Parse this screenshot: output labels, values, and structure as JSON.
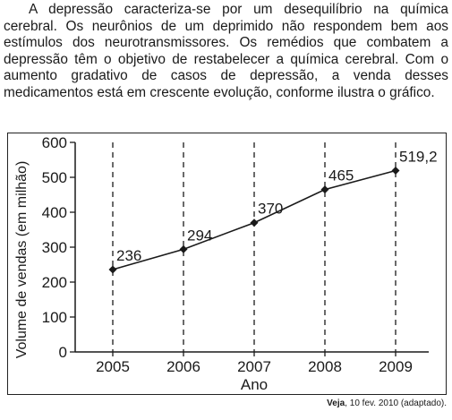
{
  "paragraph": "A depressão caracteriza-se por um desequilíbrio na química cerebral. Os neurônios de um deprimido não respondem bem aos estímulos dos neurotransmissores. Os remédios que combatem a depressão têm o objetivo de restabelecer a química cerebral. Com o aumento gradativo de casos de depressão, a venda desses medicamentos está em crescente evolução, conforme ilustra o gráfico.",
  "source": {
    "name": "Veja",
    "rest": ", 10 fev. 2010 (adaptado)."
  },
  "chart_data": {
    "type": "line",
    "title": "",
    "xlabel": "Ano",
    "ylabel": "Volume de vendas (em milhão)",
    "categories": [
      "2005",
      "2006",
      "2007",
      "2008",
      "2009"
    ],
    "values": [
      236,
      294,
      370,
      465,
      519.2
    ],
    "value_labels": [
      "236",
      "294",
      "370",
      "465",
      "519,2"
    ],
    "yticks": [
      0,
      100,
      200,
      300,
      400,
      500,
      600
    ],
    "ylim": [
      0,
      600
    ],
    "grid": false,
    "vertical_guides": "dashed",
    "colors": {
      "line": "#1a1a1a",
      "marker": "#1a1a1a"
    }
  }
}
